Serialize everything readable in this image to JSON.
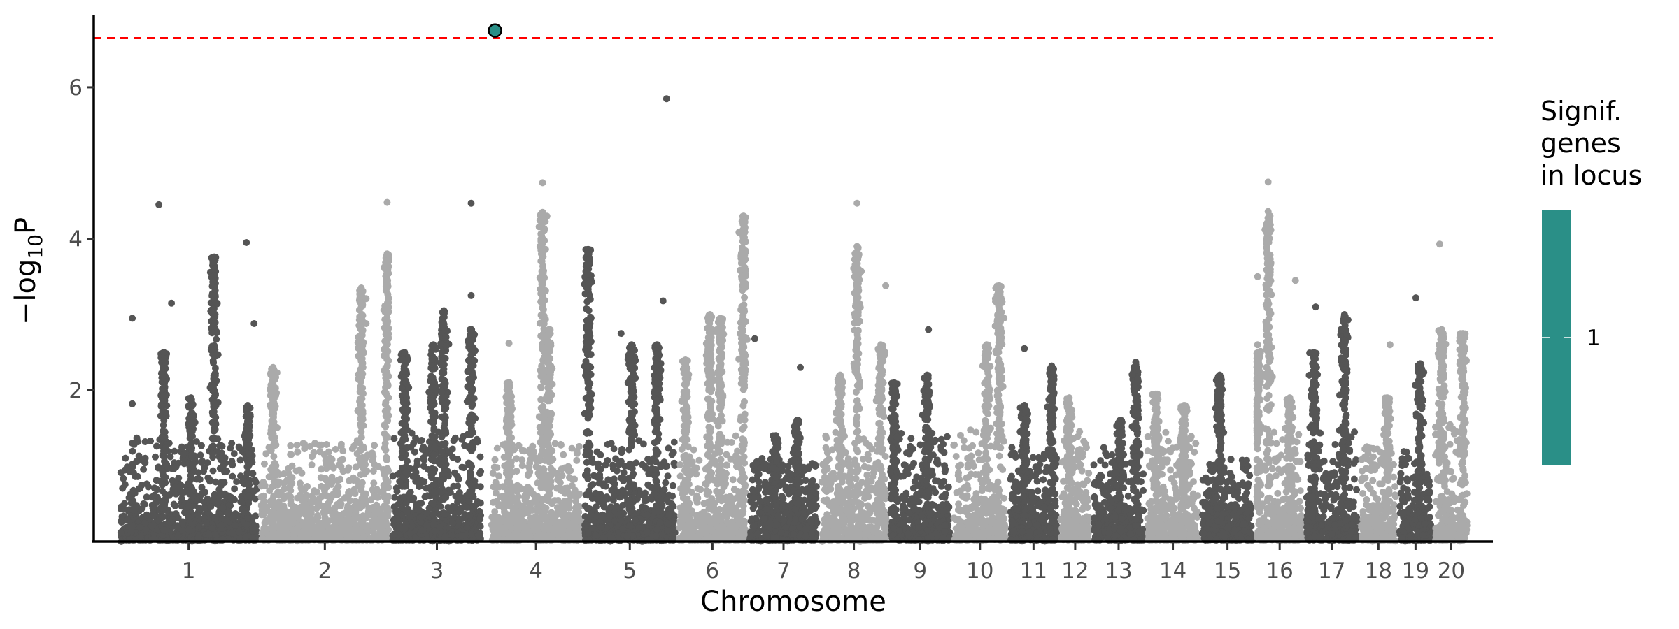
{
  "chart_data": {
    "type": "scatter",
    "subtype": "manhattan",
    "xlabel": "Chromosome",
    "ylabel_prefix": "−log",
    "ylabel_sub": "10",
    "ylabel_suffix": "P",
    "ylim": [
      0,
      6.95
    ],
    "yticks": [
      2,
      4,
      6
    ],
    "ytick_labels": [
      "2",
      "4",
      "6"
    ],
    "grid": false,
    "significance_threshold": 6.65,
    "colors": {
      "odd_chromosome": "#555555",
      "even_chromosome": "#aaaaaa",
      "threshold": "#ff0000",
      "highlight": "#2a8f87"
    },
    "chromosomes": [
      {
        "name": "1",
        "start": 35,
        "end": 236,
        "base": 1.35
      },
      {
        "name": "2",
        "start": 236,
        "end": 424,
        "base": 1.3
      },
      {
        "name": "3",
        "start": 424,
        "end": 556,
        "base": 1.45
      },
      {
        "name": "4",
        "start": 565,
        "end": 698,
        "base": 1.3
      },
      {
        "name": "5",
        "start": 698,
        "end": 833,
        "base": 1.3
      },
      {
        "name": "6",
        "start": 833,
        "end": 934,
        "base": 1.4
      },
      {
        "name": "7",
        "start": 934,
        "end": 1036,
        "base": 1.1
      },
      {
        "name": "8",
        "start": 1036,
        "end": 1135,
        "base": 1.45
      },
      {
        "name": "9",
        "start": 1135,
        "end": 1225,
        "base": 1.4
      },
      {
        "name": "10",
        "start": 1225,
        "end": 1306,
        "base": 1.5
      },
      {
        "name": "11",
        "start": 1306,
        "end": 1378,
        "base": 1.2
      },
      {
        "name": "12",
        "start": 1378,
        "end": 1425,
        "base": 1.45
      },
      {
        "name": "13",
        "start": 1425,
        "end": 1502,
        "base": 1.2
      },
      {
        "name": "14",
        "start": 1502,
        "end": 1580,
        "base": 1.4
      },
      {
        "name": "15",
        "start": 1580,
        "end": 1658,
        "base": 1.1
      },
      {
        "name": "16",
        "start": 1658,
        "end": 1729,
        "base": 1.5
      },
      {
        "name": "17",
        "start": 1729,
        "end": 1807,
        "base": 1.5
      },
      {
        "name": "18",
        "start": 1807,
        "end": 1862,
        "base": 1.3
      },
      {
        "name": "19",
        "start": 1862,
        "end": 1913,
        "base": 1.2
      },
      {
        "name": "20",
        "start": 1913,
        "end": 1964,
        "base": 1.6
      }
    ],
    "xlim": [
      0,
      1998
    ],
    "peaks": [
      {
        "chr": "1",
        "pos": 65,
        "h": 2.5
      },
      {
        "chr": "1",
        "pos": 104,
        "h": 1.9
      },
      {
        "chr": "1",
        "pos": 137,
        "h": 3.76
      },
      {
        "chr": "1",
        "pos": 185,
        "h": 1.8
      },
      {
        "chr": "2",
        "pos": 20,
        "h": 2.3
      },
      {
        "chr": "2",
        "pos": 146,
        "h": 3.35
      },
      {
        "chr": "2",
        "pos": 183,
        "h": 3.8
      },
      {
        "chr": "3",
        "pos": 20,
        "h": 2.5
      },
      {
        "chr": "3",
        "pos": 61,
        "h": 2.6
      },
      {
        "chr": "3",
        "pos": 76,
        "h": 3.05
      },
      {
        "chr": "3",
        "pos": 115,
        "h": 2.8
      },
      {
        "chr": "4",
        "pos": 28,
        "h": 2.1
      },
      {
        "chr": "4",
        "pos": 76,
        "h": 4.35
      },
      {
        "chr": "4",
        "pos": 85,
        "h": 2.8
      },
      {
        "chr": "5",
        "pos": 8,
        "h": 3.86
      },
      {
        "chr": "5",
        "pos": 70,
        "h": 2.6
      },
      {
        "chr": "5",
        "pos": 106,
        "h": 2.6
      },
      {
        "chr": "6",
        "pos": 12,
        "h": 2.4
      },
      {
        "chr": "6",
        "pos": 47,
        "h": 3.0
      },
      {
        "chr": "6",
        "pos": 62,
        "h": 2.95
      },
      {
        "chr": "6",
        "pos": 95,
        "h": 4.3
      },
      {
        "chr": "7",
        "pos": 70,
        "h": 1.6
      },
      {
        "chr": "7",
        "pos": 40,
        "h": 1.4
      },
      {
        "chr": "8",
        "pos": 30,
        "h": 2.2
      },
      {
        "chr": "8",
        "pos": 54,
        "h": 3.9
      },
      {
        "chr": "8",
        "pos": 88,
        "h": 2.6
      },
      {
        "chr": "9",
        "pos": 8,
        "h": 2.1
      },
      {
        "chr": "9",
        "pos": 55,
        "h": 2.2
      },
      {
        "chr": "10",
        "pos": 50,
        "h": 2.6
      },
      {
        "chr": "10",
        "pos": 68,
        "h": 3.38
      },
      {
        "chr": "11",
        "pos": 23,
        "h": 1.8
      },
      {
        "chr": "11",
        "pos": 62,
        "h": 2.32
      },
      {
        "chr": "12",
        "pos": 15,
        "h": 1.9
      },
      {
        "chr": "13",
        "pos": 40,
        "h": 1.6
      },
      {
        "chr": "13",
        "pos": 63,
        "h": 2.37
      },
      {
        "chr": "14",
        "pos": 15,
        "h": 1.95
      },
      {
        "chr": "14",
        "pos": 55,
        "h": 1.8
      },
      {
        "chr": "15",
        "pos": 28,
        "h": 2.2
      },
      {
        "chr": "16",
        "pos": 4,
        "h": 2.6
      },
      {
        "chr": "16",
        "pos": 19,
        "h": 4.36
      },
      {
        "chr": "16",
        "pos": 50,
        "h": 1.9
      },
      {
        "chr": "17",
        "pos": 13,
        "h": 2.5
      },
      {
        "chr": "17",
        "pos": 57,
        "h": 3.0
      },
      {
        "chr": "18",
        "pos": 40,
        "h": 1.9
      },
      {
        "chr": "19",
        "pos": 32,
        "h": 2.35
      },
      {
        "chr": "20",
        "pos": 12,
        "h": 2.8
      },
      {
        "chr": "20",
        "pos": 42,
        "h": 2.75
      }
    ],
    "outliers": [
      {
        "chr": "1",
        "pos": 58,
        "p": 4.45
      },
      {
        "chr": "1",
        "pos": 20,
        "p": 2.95
      },
      {
        "chr": "1",
        "pos": 20,
        "p": 1.82
      },
      {
        "chr": "1",
        "pos": 76,
        "p": 3.15
      },
      {
        "chr": "1",
        "pos": 183,
        "p": 3.95
      },
      {
        "chr": "1",
        "pos": 194,
        "p": 2.88
      },
      {
        "chr": "2",
        "pos": 183,
        "p": 4.48
      },
      {
        "chr": "3",
        "pos": 115,
        "p": 4.47
      },
      {
        "chr": "3",
        "pos": 115,
        "p": 3.25
      },
      {
        "chr": "4",
        "pos": 76,
        "p": 4.74
      },
      {
        "chr": "4",
        "pos": 28,
        "p": 2.62
      },
      {
        "chr": "5",
        "pos": 115,
        "p": 3.18
      },
      {
        "chr": "5",
        "pos": 120,
        "p": 5.85
      },
      {
        "chr": "5",
        "pos": 55,
        "p": 2.75
      },
      {
        "chr": "6",
        "pos": 100,
        "p": 2.67
      },
      {
        "chr": "7",
        "pos": 10,
        "p": 2.68
      },
      {
        "chr": "7",
        "pos": 75,
        "p": 2.3
      },
      {
        "chr": "8",
        "pos": 54,
        "p": 4.47
      },
      {
        "chr": "8",
        "pos": 95,
        "p": 3.38
      },
      {
        "chr": "9",
        "pos": 57,
        "p": 2.8
      },
      {
        "chr": "11",
        "pos": 23,
        "p": 2.55
      },
      {
        "chr": "16",
        "pos": 19,
        "p": 4.75
      },
      {
        "chr": "16",
        "pos": 58,
        "p": 3.45
      },
      {
        "chr": "16",
        "pos": 4,
        "p": 3.5
      },
      {
        "chr": "17",
        "pos": 16,
        "p": 3.1
      },
      {
        "chr": "17",
        "pos": 57,
        "p": 2.98
      },
      {
        "chr": "18",
        "pos": 44,
        "p": 2.6
      },
      {
        "chr": "19",
        "pos": 26,
        "p": 3.22
      },
      {
        "chr": "20",
        "pos": 9,
        "p": 3.93
      }
    ],
    "highlighted_points": [
      {
        "chr": "4",
        "pos": 8,
        "p": 6.75,
        "signif_genes": 1
      }
    ],
    "legend": {
      "title_lines": [
        "Signif.",
        "genes",
        "in locus"
      ],
      "labels": [
        "1"
      ],
      "placement": "right"
    }
  }
}
